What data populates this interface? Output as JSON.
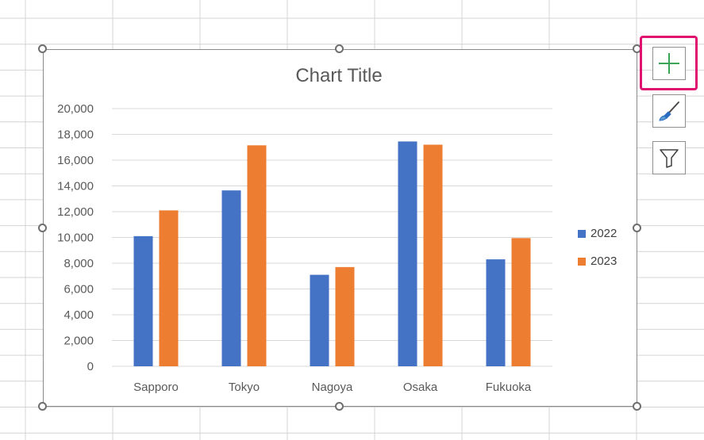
{
  "chart_data": {
    "type": "bar",
    "title": "Chart Title",
    "categories": [
      "Sapporo",
      "Tokyo",
      "Nagoya",
      "Osaka",
      "Fukuoka"
    ],
    "series": [
      {
        "name": "2022",
        "color": "#4472C4",
        "values": [
          10100,
          13650,
          7100,
          17450,
          8300
        ]
      },
      {
        "name": "2023",
        "color": "#ED7D31",
        "values": [
          12100,
          17150,
          7700,
          17200,
          9950
        ]
      }
    ],
    "ylim": [
      0,
      20000
    ],
    "yticks": [
      0,
      2000,
      4000,
      6000,
      8000,
      10000,
      12000,
      14000,
      16000,
      18000,
      20000
    ],
    "ytick_labels": [
      "0",
      "2,000",
      "4,000",
      "6,000",
      "8,000",
      "10,000",
      "12,000",
      "14,000",
      "16,000",
      "18,000",
      "20,000"
    ],
    "grid": true,
    "legend_position": "right"
  },
  "chart_tools": {
    "elements_icon": "plus-icon",
    "styles_icon": "paintbrush-icon",
    "filters_icon": "funnel-icon",
    "highlight_color": "#E0106F"
  },
  "colors": {
    "gridline": "#D9D9D9",
    "axis_text": "#595959",
    "cell_border": "#D4D4D4"
  }
}
